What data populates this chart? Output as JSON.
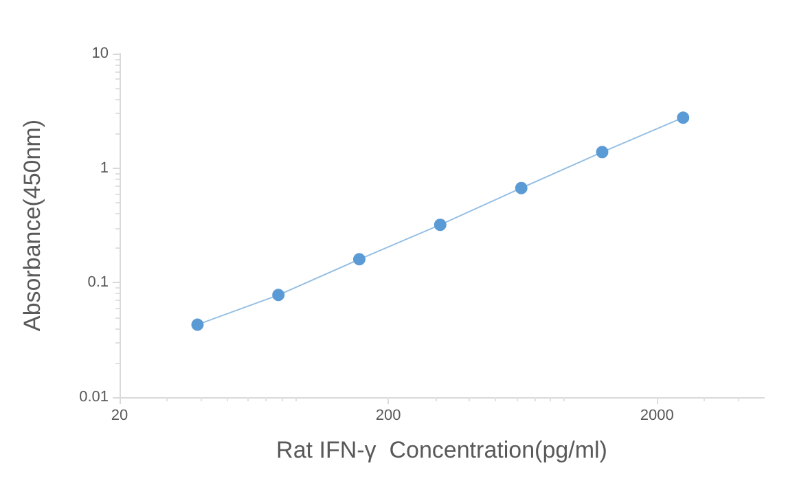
{
  "chart_data": {
    "type": "line",
    "xlabel": "Rat IFN-γ  Concentration(pg/ml)",
    "ylabel": "Absorbance(450nm)",
    "x": [
      39,
      78,
      156,
      312,
      625,
      1250,
      2500
    ],
    "series": [
      {
        "color": "#5b9bd5",
        "values": [
          0.043,
          0.078,
          0.16,
          0.32,
          0.67,
          1.38,
          2.76
        ]
      }
    ],
    "xlim": [
      20,
      5000
    ],
    "xticks": [
      20,
      200,
      2000
    ],
    "ylim": [
      0.01,
      10
    ],
    "yticks": [
      0.01,
      0.1,
      1,
      10
    ],
    "log": "xy",
    "grid": false,
    "marker": "circle",
    "line_style": "solid"
  }
}
